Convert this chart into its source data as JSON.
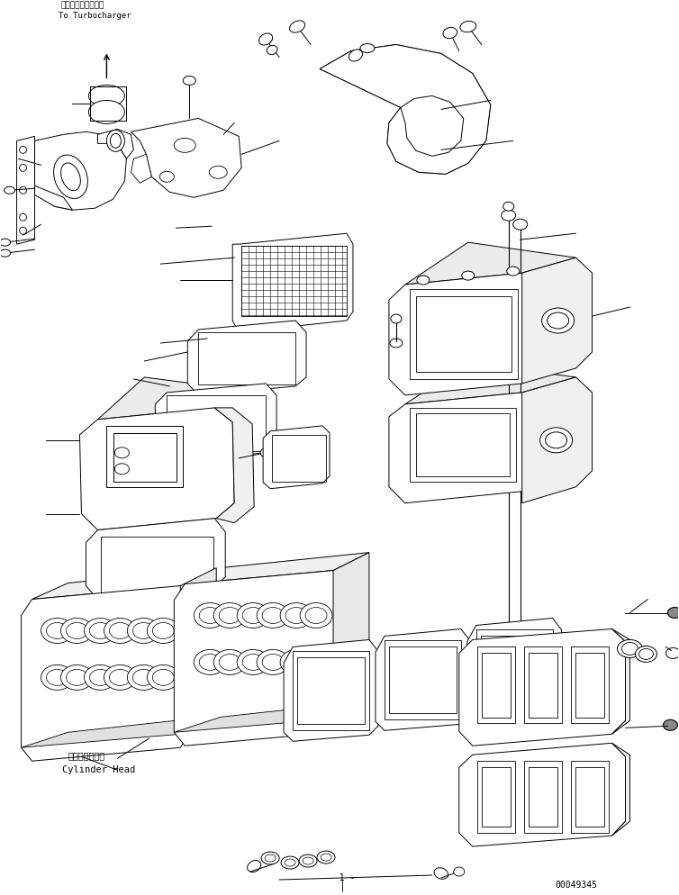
{
  "background_color": "#ffffff",
  "line_color": "#000000",
  "fig_width": 7.54,
  "fig_height": 9.94,
  "dpi": 100,
  "label_turbocharger_jp": "ターボチャージャへ",
  "label_turbocharger_en": "To Turbocharger",
  "label_cylinder_head_jp": "シリンダヘッド",
  "label_cylinder_head_en": "Cylinder Head",
  "part_number": "00049345",
  "subtitle": "- 1 -"
}
